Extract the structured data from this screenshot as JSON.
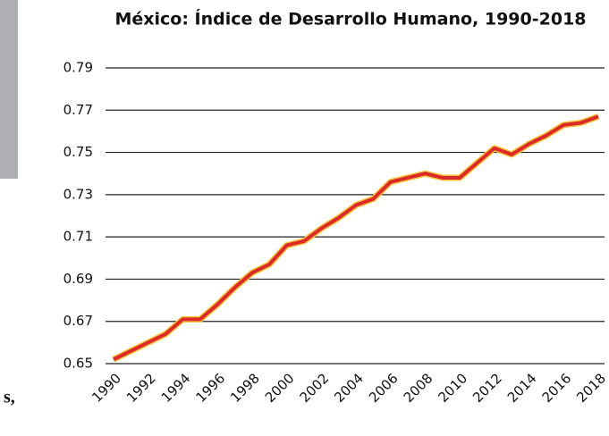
{
  "chart_data": {
    "type": "line",
    "title": "México: Índice de Desarrollo Humano, 1990-2018",
    "x": [
      1990,
      1991,
      1992,
      1993,
      1994,
      1995,
      1996,
      1997,
      1998,
      1999,
      2000,
      2001,
      2002,
      2003,
      2004,
      2005,
      2006,
      2007,
      2008,
      2009,
      2010,
      2011,
      2012,
      2013,
      2014,
      2015,
      2016,
      2017,
      2018
    ],
    "series": [
      {
        "color": "#dc2a28",
        "values": [
          0.652,
          0.656,
          0.66,
          0.664,
          0.671,
          0.671,
          0.678,
          0.686,
          0.693,
          0.697,
          0.706,
          0.708,
          0.714,
          0.719,
          0.725,
          0.728,
          0.736,
          0.738,
          0.74,
          0.738,
          0.738,
          0.745,
          0.752,
          0.749,
          0.754,
          0.758,
          0.763,
          0.764,
          0.767
        ]
      }
    ],
    "xlim": [
      1990,
      2018
    ],
    "xticks": [
      1990,
      1992,
      1994,
      1996,
      1998,
      2000,
      2002,
      2004,
      2006,
      2008,
      2010,
      2012,
      2014,
      2016,
      2018
    ],
    "ylim": [
      0.65,
      0.79
    ],
    "yticks": [
      0.65,
      0.67,
      0.69,
      0.71,
      0.73,
      0.75,
      0.77,
      0.79
    ],
    "grid": true
  },
  "page_fragments": [
    "s,"
  ]
}
